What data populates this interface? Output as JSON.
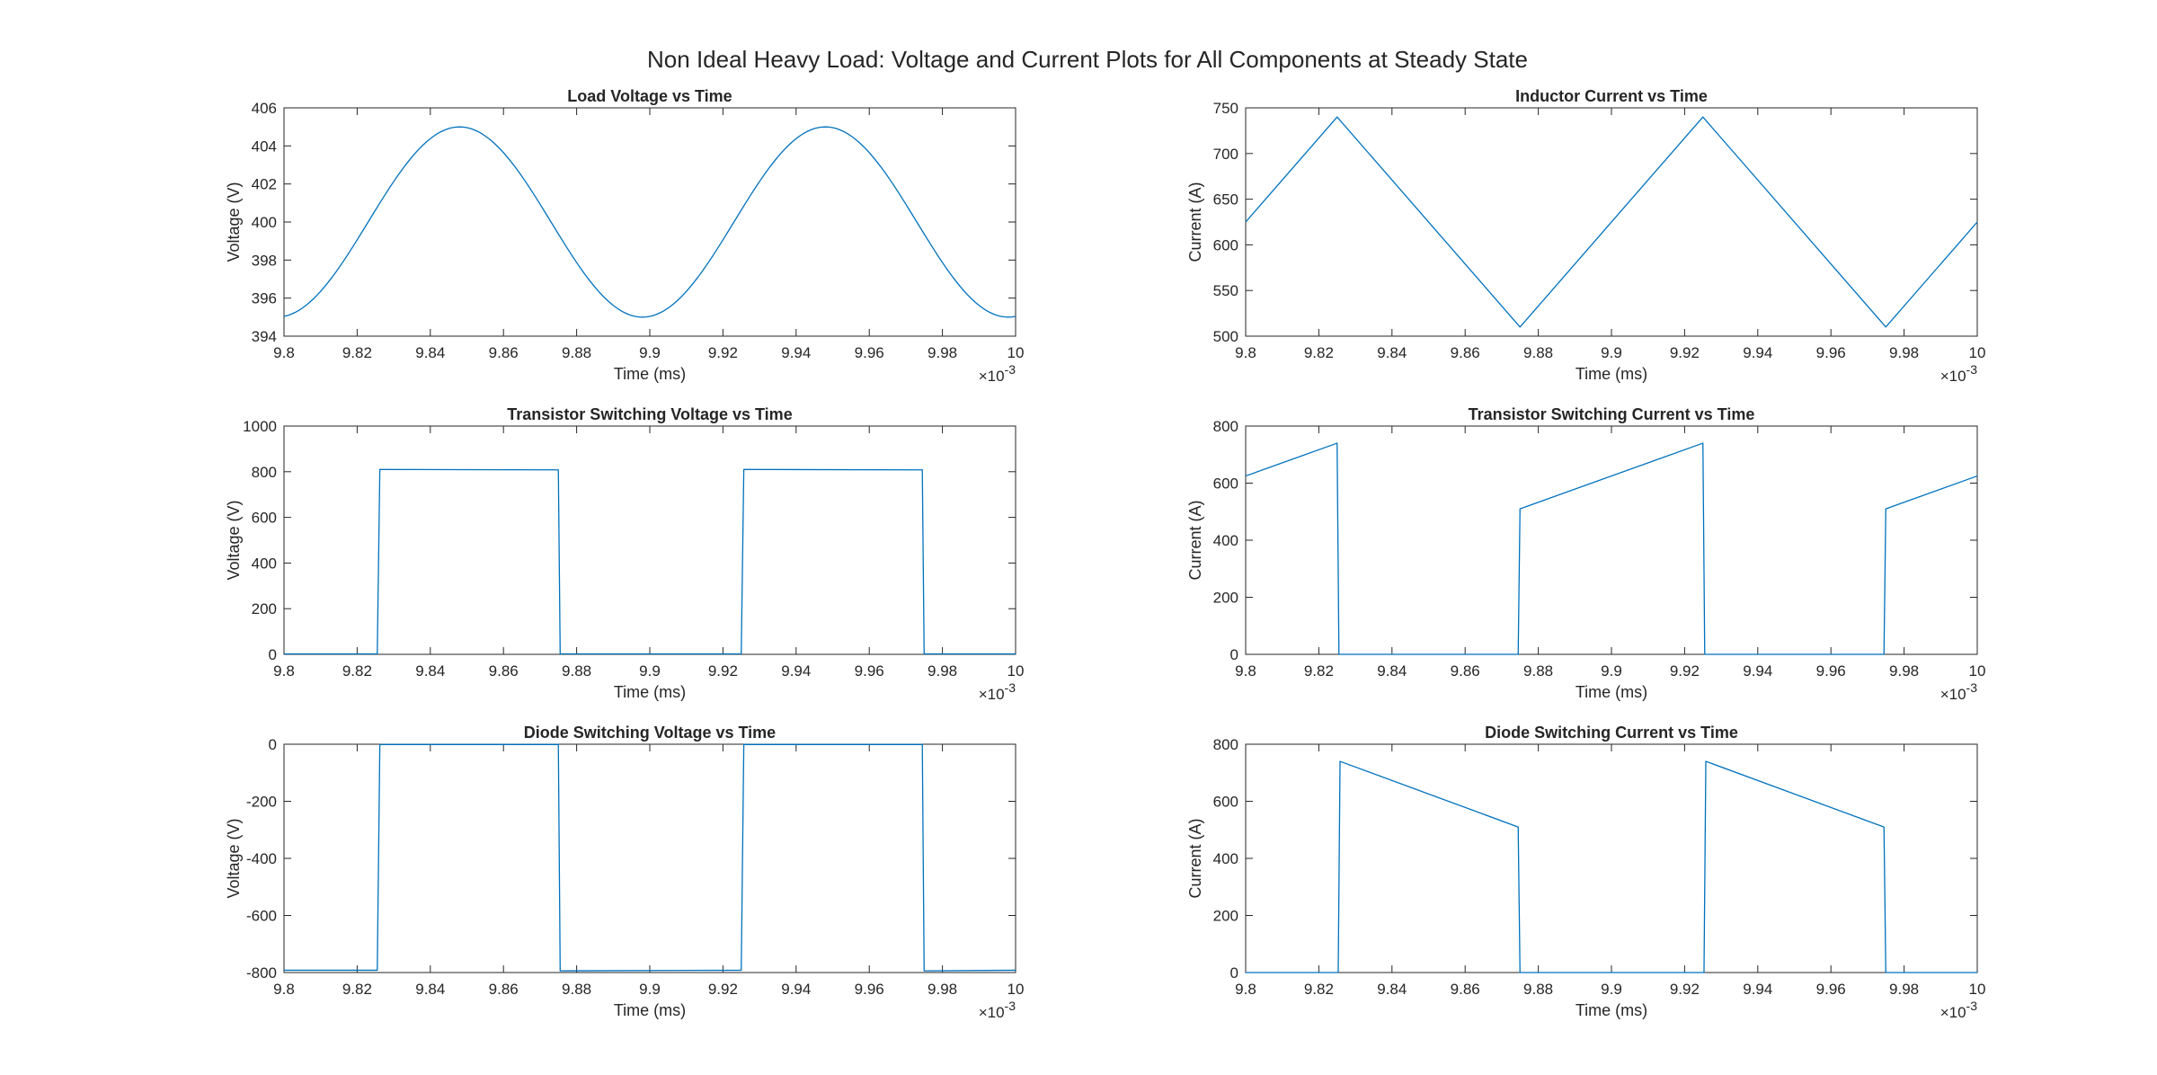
{
  "figure": {
    "title": "Non Ideal Heavy Load: Voltage and Current Plots for All Components at Steady State"
  },
  "chart_data": [
    {
      "type": "line",
      "title": "Load Voltage vs Time",
      "xlabel": "Time (ms)",
      "ylabel": "Voltage (V)",
      "x_exponent_label": "×10",
      "x_exponent": "-3",
      "xlim": [
        9.8,
        10
      ],
      "ylim": [
        394,
        406
      ],
      "xticks": [
        9.8,
        9.82,
        9.84,
        9.86,
        9.88,
        9.9,
        9.92,
        9.94,
        9.96,
        9.98,
        10
      ],
      "yticks": [
        394,
        396,
        398,
        400,
        402,
        404,
        406
      ],
      "color": "#0072BD",
      "series": [
        {
          "waveform": "sine",
          "mean": 400,
          "amplitude": 5,
          "period": 0.1,
          "peak_at": 9.848,
          "samples": 201
        }
      ]
    },
    {
      "type": "line",
      "title": "Inductor Current vs Time",
      "xlabel": "Time (ms)",
      "ylabel": "Current (A)",
      "x_exponent_label": "×10",
      "x_exponent": "-3",
      "xlim": [
        9.8,
        10
      ],
      "ylim": [
        500,
        750
      ],
      "xticks": [
        9.8,
        9.82,
        9.84,
        9.86,
        9.88,
        9.9,
        9.92,
        9.94,
        9.96,
        9.98,
        10
      ],
      "yticks": [
        500,
        550,
        600,
        650,
        700,
        750
      ],
      "color": "#0072BD",
      "series": [
        {
          "x": [
            9.8,
            9.825,
            9.875,
            9.925,
            9.975,
            10
          ],
          "y": [
            625,
            740,
            510,
            740,
            510,
            625
          ]
        }
      ]
    },
    {
      "type": "line",
      "title": "Transistor Switching Voltage vs Time",
      "xlabel": "Time (ms)",
      "ylabel": "Voltage (V)",
      "x_exponent_label": "×10",
      "x_exponent": "-3",
      "xlim": [
        9.8,
        10
      ],
      "ylim": [
        0,
        1000
      ],
      "xticks": [
        9.8,
        9.82,
        9.84,
        9.86,
        9.88,
        9.9,
        9.92,
        9.94,
        9.96,
        9.98,
        10
      ],
      "yticks": [
        0,
        200,
        400,
        600,
        800,
        1000
      ],
      "color": "#0072BD",
      "series": [
        {
          "x": [
            9.8,
            9.8255,
            9.8262,
            9.875,
            9.8755,
            9.925,
            9.9257,
            9.9745,
            9.975,
            10
          ],
          "y": [
            2,
            2,
            810,
            808,
            2,
            2,
            810,
            808,
            2,
            2
          ]
        }
      ]
    },
    {
      "type": "line",
      "title": "Transistor Switching Current vs Time",
      "xlabel": "Time (ms)",
      "ylabel": "Current (A)",
      "x_exponent_label": "×10",
      "x_exponent": "-3",
      "xlim": [
        9.8,
        10
      ],
      "ylim": [
        0,
        800
      ],
      "xticks": [
        9.8,
        9.82,
        9.84,
        9.86,
        9.88,
        9.9,
        9.92,
        9.94,
        9.96,
        9.98,
        10
      ],
      "yticks": [
        0,
        200,
        400,
        600,
        800
      ],
      "color": "#0072BD",
      "series": [
        {
          "x": [
            9.8,
            9.825,
            9.8255,
            9.8745,
            9.875,
            9.925,
            9.9255,
            9.9745,
            9.975,
            10
          ],
          "y": [
            625,
            740,
            0,
            0,
            510,
            740,
            0,
            0,
            510,
            625
          ]
        }
      ]
    },
    {
      "type": "line",
      "title": "Diode Switching Voltage vs Time",
      "xlabel": "Time (ms)",
      "ylabel": "Voltage (V)",
      "x_exponent_label": "×10",
      "x_exponent": "-3",
      "xlim": [
        9.8,
        10
      ],
      "ylim": [
        -800,
        0
      ],
      "xticks": [
        9.8,
        9.82,
        9.84,
        9.86,
        9.88,
        9.9,
        9.92,
        9.94,
        9.96,
        9.98,
        10
      ],
      "yticks": [
        -800,
        -600,
        -400,
        -200,
        0
      ],
      "color": "#0072BD",
      "series": [
        {
          "x": [
            9.8,
            9.8255,
            9.8262,
            9.875,
            9.8755,
            9.925,
            9.9257,
            9.9745,
            9.975,
            10
          ],
          "y": [
            -792,
            -792,
            -1,
            -1,
            -794,
            -792,
            -1,
            -1,
            -794,
            -792
          ]
        }
      ]
    },
    {
      "type": "line",
      "title": "Diode Switching Current vs Time",
      "xlabel": "Time (ms)",
      "ylabel": "Current (A)",
      "x_exponent_label": "×10",
      "x_exponent": "-3",
      "xlim": [
        9.8,
        10
      ],
      "ylim": [
        0,
        800
      ],
      "xticks": [
        9.8,
        9.82,
        9.84,
        9.86,
        9.88,
        9.9,
        9.92,
        9.94,
        9.96,
        9.98,
        10
      ],
      "yticks": [
        0,
        200,
        400,
        600,
        800
      ],
      "color": "#0072BD",
      "series": [
        {
          "x": [
            9.8,
            9.8253,
            9.8258,
            9.8745,
            9.875,
            9.9253,
            9.9258,
            9.9745,
            9.975,
            10
          ],
          "y": [
            0,
            0,
            740,
            510,
            0,
            0,
            740,
            510,
            0,
            0
          ]
        }
      ]
    }
  ]
}
